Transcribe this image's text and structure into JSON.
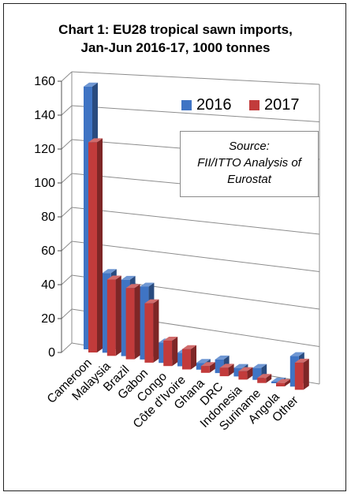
{
  "title": {
    "line1": "Chart 1: EU28 tropical sawn imports,",
    "line2": "Jan-Jun 2016-17, 1000 tonnes"
  },
  "source_note": {
    "line1": "Source:",
    "line2": "FII/ITTO Analysis of",
    "line3": "Eurostat"
  },
  "colors": {
    "s2016": "#3f74c4",
    "s2017": "#c23b3b"
  },
  "chart_data": {
    "type": "bar",
    "style": "3d-clustered",
    "categories": [
      "Cameroon",
      "Malaysia",
      "Brazil",
      "Gabon",
      "Congo",
      "Côte d'Ivoire",
      "Ghana",
      "DRC",
      "Indonesia",
      "Suriname",
      "Angola",
      "Other"
    ],
    "series": [
      {
        "name": "2016",
        "values": [
          155,
          47,
          45,
          43,
          12,
          8,
          4,
          8,
          5,
          7,
          1,
          18
        ]
      },
      {
        "name": "2017",
        "values": [
          124,
          45,
          42,
          35,
          15,
          12,
          4,
          5,
          5,
          3,
          2,
          16
        ]
      }
    ],
    "ylim": [
      0,
      160
    ],
    "yticks": [
      0,
      20,
      40,
      60,
      80,
      100,
      120,
      140,
      160
    ],
    "grid": true,
    "legend": "top-right"
  }
}
